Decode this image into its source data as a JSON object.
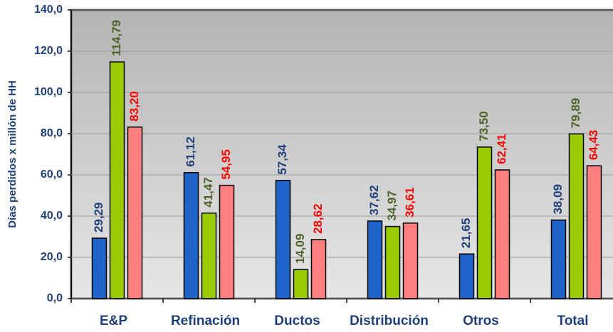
{
  "chart_data": {
    "type": "bar",
    "y_label": "Días perdidos x millón de HH",
    "categories": [
      "E&P",
      "Refinación",
      "Ductos",
      "Distribución",
      "Otros",
      "Total"
    ],
    "series": [
      {
        "color": "#1f64c8",
        "label_color": "#1f3f7a",
        "values": [
          29.29,
          61.12,
          57.34,
          37.62,
          21.65,
          38.09
        ],
        "value_labels": [
          "29,29",
          "61,12",
          "57,34",
          "37,62",
          "21,65",
          "38,09"
        ]
      },
      {
        "color": "#99cc00",
        "label_color": "#4f6228",
        "values": [
          114.79,
          41.47,
          14.09,
          34.97,
          73.5,
          79.89
        ],
        "value_labels": [
          "114,79",
          "41,47",
          "14,09",
          "34,97",
          "73,50",
          "79,89"
        ]
      },
      {
        "color": "#ff7f7f",
        "label_color": "#ff0000",
        "values": [
          83.2,
          54.95,
          28.62,
          36.61,
          62.41,
          64.43
        ],
        "value_labels": [
          "83,20",
          "54,95",
          "28,62",
          "36,61",
          "62,41",
          "64,43"
        ]
      }
    ],
    "ylim": [
      0,
      140
    ],
    "yticks": [
      {
        "value": 0,
        "label": "0,0"
      },
      {
        "value": 20,
        "label": "20,0"
      },
      {
        "value": 40,
        "label": "40,0"
      },
      {
        "value": 60,
        "label": "60,0"
      },
      {
        "value": 80,
        "label": "80,0"
      },
      {
        "value": 100,
        "label": "100,0"
      },
      {
        "value": 120,
        "label": "120,0"
      },
      {
        "value": 140,
        "label": "140,0"
      }
    ],
    "grid": true
  }
}
